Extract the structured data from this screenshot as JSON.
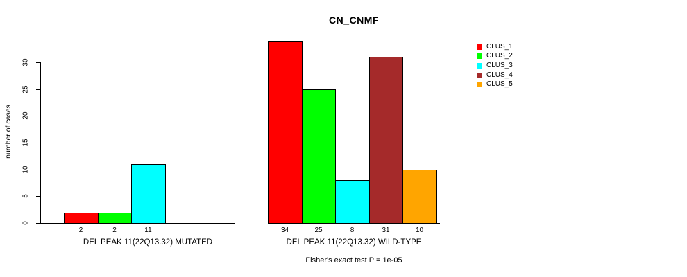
{
  "title": "CN_CNMF",
  "y_axis": {
    "label": "number of cases"
  },
  "footnote": "Fisher's exact test P = 1e-05",
  "legend": {
    "items": [
      {
        "label": "CLUS_1",
        "color": "#FF0000"
      },
      {
        "label": "CLUS_2",
        "color": "#00FF00"
      },
      {
        "label": "CLUS_3",
        "color": "#00FFFF"
      },
      {
        "label": "CLUS_4",
        "color": "#A52A2A"
      },
      {
        "label": "CLUS_5",
        "color": "#FFA500"
      }
    ]
  },
  "chart_data": {
    "type": "bar",
    "title": "CN_CNMF",
    "xlabel": "",
    "ylabel": "number of cases",
    "ylim": [
      0,
      30
    ],
    "yticks": [
      0,
      5,
      10,
      15,
      20,
      25,
      30
    ],
    "grid": false,
    "legend_position": "top-right",
    "series": [
      {
        "name": "CLUS_1",
        "color": "#FF0000"
      },
      {
        "name": "CLUS_2",
        "color": "#00FF00"
      },
      {
        "name": "CLUS_3",
        "color": "#00FFFF"
      },
      {
        "name": "CLUS_4",
        "color": "#A52A2A"
      },
      {
        "name": "CLUS_5",
        "color": "#FFA500"
      }
    ],
    "groups": [
      {
        "label": "DEL PEAK 11(22Q13.32) MUTATED",
        "values": [
          2,
          2,
          11,
          0,
          0
        ],
        "value_labels": [
          "2",
          "2",
          "11",
          "",
          ""
        ]
      },
      {
        "label": "DEL PEAK 11(22Q13.32) WILD-TYPE",
        "values": [
          34,
          25,
          8,
          31,
          10
        ],
        "value_labels": [
          "34",
          "25",
          "8",
          "31",
          "10"
        ]
      }
    ],
    "annotation": "Fisher's exact test P = 1e-05"
  }
}
